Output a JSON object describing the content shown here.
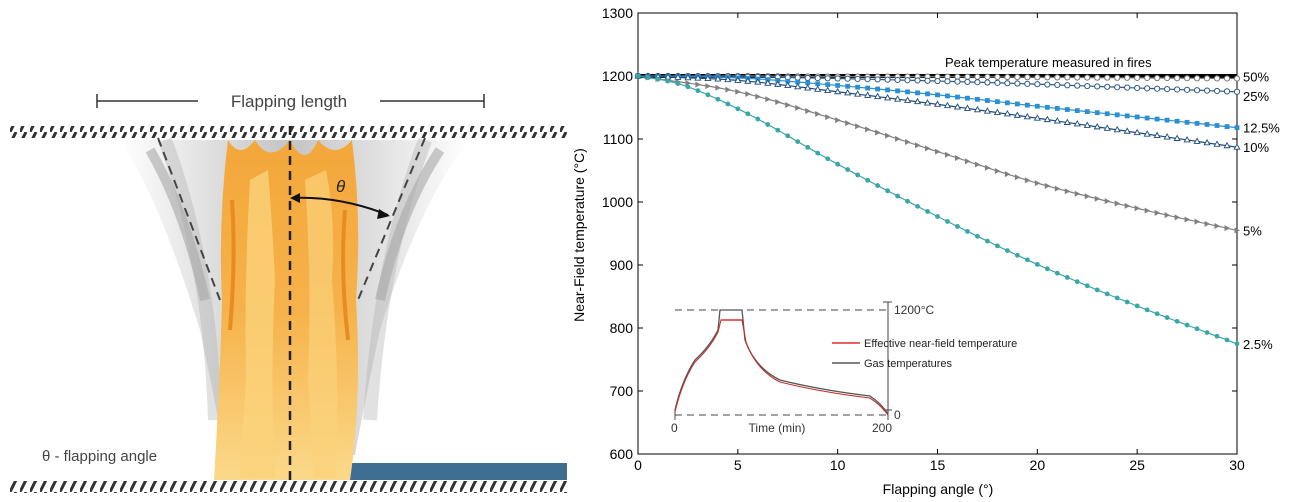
{
  "diagram": {
    "flapping_length_label": "Flapping length",
    "theta_symbol": "θ",
    "flapping_angle_legend": "θ - flapping angle",
    "colors": {
      "flame_outer": "#f0a22a",
      "flame_inner": "#fbd27a",
      "smoke": "#c9c9c9",
      "floor_blue": "#3e6f93"
    }
  },
  "chart_data": {
    "type": "line",
    "xlabel": "Flapping angle (°)",
    "ylabel": "Near-Field temperature (°C)",
    "xlim": [
      0,
      30
    ],
    "ylim": [
      600,
      1300
    ],
    "xticks": [
      0,
      5,
      10,
      15,
      20,
      25,
      30
    ],
    "yticks": [
      600,
      700,
      800,
      900,
      1000,
      1100,
      1200,
      1300
    ],
    "grid": false,
    "reference_line": {
      "label": "Peak temperature measured in fires",
      "value": 1200,
      "color": "#000000"
    },
    "series": [
      {
        "name": "50%",
        "color": "#777777",
        "marker": "circle-open",
        "x": [
          0,
          5,
          10,
          15,
          20,
          25,
          30
        ],
        "y": [
          1200,
          1200,
          1199,
          1199,
          1198,
          1197,
          1196
        ]
      },
      {
        "name": "25%",
        "color": "#2e5a86",
        "marker": "circle-open",
        "x": [
          0,
          5,
          10,
          15,
          20,
          25,
          30
        ],
        "y": [
          1200,
          1199,
          1196,
          1192,
          1187,
          1181,
          1175
        ]
      },
      {
        "name": "12.5%",
        "color": "#2b8fd1",
        "marker": "square-filled",
        "x": [
          0,
          5,
          10,
          15,
          20,
          25,
          30
        ],
        "y": [
          1200,
          1197,
          1185,
          1170,
          1152,
          1135,
          1118
        ]
      },
      {
        "name": "10%",
        "color": "#1f4a7a",
        "marker": "triangle-open",
        "x": [
          0,
          5,
          10,
          15,
          20,
          25,
          30
        ],
        "y": [
          1200,
          1193,
          1175,
          1155,
          1133,
          1110,
          1087
        ]
      },
      {
        "name": "5%",
        "color": "#808080",
        "marker": "triangle-right",
        "x": [
          0,
          5,
          10,
          15,
          20,
          25,
          30
        ],
        "y": [
          1200,
          1175,
          1130,
          1080,
          1030,
          990,
          955
        ]
      },
      {
        "name": "2.5%",
        "color": "#3aa6a6",
        "marker": "dot",
        "x": [
          0,
          2,
          5,
          10,
          15,
          20,
          25,
          30
        ],
        "y": [
          1200,
          1188,
          1148,
          1060,
          977,
          901,
          835,
          775
        ]
      }
    ],
    "inset": {
      "xticks": [
        "0",
        "200"
      ],
      "xlabel": "Time (min)",
      "yticks": [
        "0"
      ],
      "peak_label": "1200°C",
      "legend": [
        {
          "label": "Effective near-field temperature",
          "color": "#e03030"
        },
        {
          "label": "Gas temperatures",
          "color": "#555555"
        }
      ]
    }
  }
}
